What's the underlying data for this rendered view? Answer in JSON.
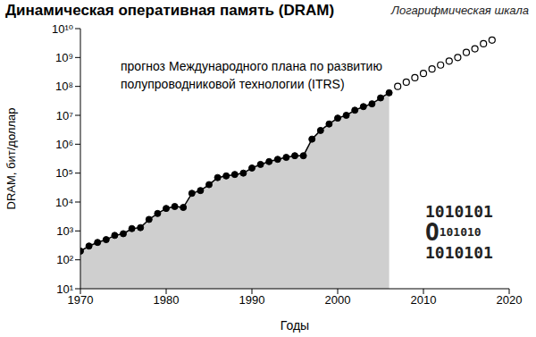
{
  "chart_data": {
    "type": "line",
    "title": "Динамическая оперативная память (DRAM)",
    "subtitle": "Логарифмическая шкала",
    "x_label": "Годы",
    "y_label": "DRAM, бит/доллар",
    "annotation": [
      "прогноз Международного плана по развитию",
      "полупроводниковой технологии (ITRS)"
    ],
    "image_text": [
      "1010101",
      "O101010",
      "1010101"
    ],
    "log": "y",
    "grid": false,
    "tick_labels": true,
    "xlim": [
      1970,
      2020
    ],
    "xticks": [
      1970,
      1980,
      1990,
      2000,
      2010,
      2020
    ],
    "ylim": [
      10,
      10000000000
    ],
    "yticks": [
      {
        "value": 10,
        "label": "10¹"
      },
      {
        "value": 100,
        "label": "10²"
      },
      {
        "value": 1000,
        "label": "10³"
      },
      {
        "value": 10000,
        "label": "10⁴"
      },
      {
        "value": 100000,
        "label": "10⁵"
      },
      {
        "value": 1000000,
        "label": "10⁶"
      },
      {
        "value": 10000000,
        "label": "10⁷"
      },
      {
        "value": 100000000,
        "label": "10⁸"
      },
      {
        "value": 1000000000,
        "label": "10⁹"
      },
      {
        "value": 10000000000,
        "label": "10¹⁰"
      }
    ],
    "series": [
      {
        "type": "area",
        "color": "#000000",
        "marker": "filled",
        "line_style": "solid",
        "x": [
          1970,
          1971,
          1972,
          1973,
          1974,
          1975,
          1976,
          1977,
          1978,
          1979,
          1980,
          1981,
          1982,
          1983,
          1984,
          1985,
          1986,
          1987,
          1988,
          1989,
          1990,
          1991,
          1992,
          1993,
          1994,
          1995,
          1996,
          1997,
          1998,
          1999,
          2000,
          2001,
          2002,
          2003,
          2004,
          2005,
          2006
        ],
        "values": [
          200,
          300,
          400,
          500,
          700,
          800,
          1200,
          1300,
          2500,
          4000,
          6000,
          7000,
          6500,
          20000,
          25000,
          40000,
          70000,
          80000,
          90000,
          100000,
          150000,
          200000,
          250000,
          300000,
          350000,
          400000,
          400000,
          1500000,
          3000000,
          5000000,
          8000000,
          10000000,
          15000000,
          20000000,
          25000000,
          40000000,
          60000000
        ]
      },
      {
        "type": "line",
        "color": "#000000",
        "marker": "open",
        "line_style": "none",
        "x": [
          2007,
          2008,
          2009,
          2010,
          2011,
          2012,
          2013,
          2014,
          2015,
          2016,
          2017,
          2018
        ],
        "values": [
          100000000,
          140000000,
          200000000,
          280000000,
          400000000,
          550000000,
          750000000,
          1000000000,
          1500000000,
          2000000000,
          3000000000,
          4000000000
        ]
      }
    ]
  }
}
